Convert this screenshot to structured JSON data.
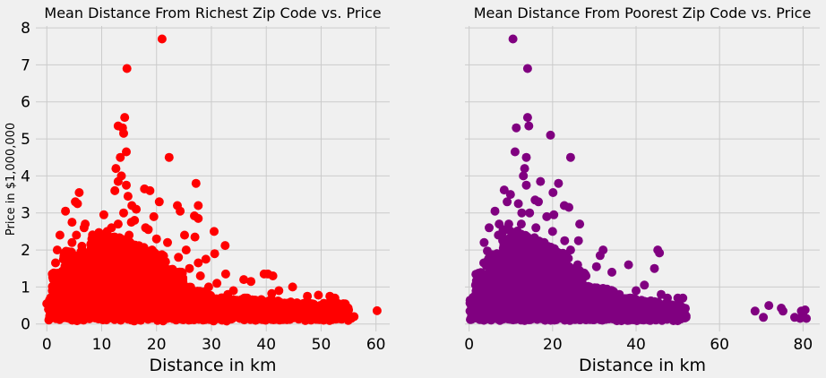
{
  "figure": {
    "background": "#f0f0f0",
    "grid_color": "#cbcbcb",
    "shared_ylabel": "Price in $1,000,000"
  },
  "chart_data": [
    {
      "type": "scatter",
      "title": "Mean Distance From Richest Zip Code vs. Price",
      "xlabel": "Distance in km",
      "ylabel": "Price in $1,000,000",
      "color": "#ff0000",
      "xlim": [
        -2,
        62.5
      ],
      "ylim": [
        -0.2,
        8.05
      ],
      "xticks": [
        0,
        10,
        20,
        30,
        40,
        50,
        60
      ],
      "yticks": [
        0,
        1,
        2,
        3,
        4,
        5,
        6,
        7,
        8
      ],
      "grid": true,
      "points": [
        [
          21.0,
          7.7
        ],
        [
          14.6,
          6.9
        ],
        [
          14.2,
          5.58
        ],
        [
          13.0,
          5.35
        ],
        [
          13.8,
          5.3
        ],
        [
          14.0,
          5.15
        ],
        [
          14.5,
          4.65
        ],
        [
          22.3,
          4.5
        ],
        [
          13.4,
          4.5
        ],
        [
          12.6,
          4.2
        ],
        [
          13.6,
          4.0
        ],
        [
          27.2,
          3.8
        ],
        [
          13.0,
          3.85
        ],
        [
          14.5,
          3.75
        ],
        [
          17.8,
          3.65
        ],
        [
          5.9,
          3.55
        ],
        [
          18.8,
          3.6
        ],
        [
          12.4,
          3.6
        ],
        [
          14.8,
          3.45
        ],
        [
          5.2,
          3.3
        ],
        [
          5.6,
          3.25
        ],
        [
          23.8,
          3.2
        ],
        [
          27.6,
          3.2
        ],
        [
          20.5,
          3.3
        ],
        [
          3.4,
          3.05
        ],
        [
          16.3,
          3.1
        ],
        [
          10.4,
          2.95
        ],
        [
          26.9,
          2.92
        ],
        [
          27.6,
          2.85
        ],
        [
          24.3,
          3.05
        ],
        [
          19.5,
          2.9
        ],
        [
          4.6,
          2.75
        ],
        [
          7.0,
          2.7
        ],
        [
          15.4,
          2.75
        ],
        [
          2.4,
          2.4
        ],
        [
          6.8,
          2.6
        ],
        [
          30.5,
          2.5
        ],
        [
          18.5,
          2.55
        ],
        [
          11.8,
          2.6
        ],
        [
          25.1,
          2.4
        ],
        [
          27.0,
          2.35
        ],
        [
          5.4,
          2.4
        ],
        [
          8.2,
          2.3
        ],
        [
          32.5,
          2.12
        ],
        [
          4.6,
          2.2
        ],
        [
          19.2,
          2.0
        ],
        [
          1.9,
          2.0
        ],
        [
          6.4,
          2.1
        ],
        [
          30.6,
          1.9
        ],
        [
          25.4,
          2.0
        ],
        [
          29.0,
          1.75
        ],
        [
          27.6,
          1.65
        ],
        [
          1.6,
          1.65
        ],
        [
          32.6,
          1.35
        ],
        [
          39.6,
          1.35
        ],
        [
          41.2,
          1.3
        ],
        [
          35.9,
          1.2
        ],
        [
          40.3,
          1.35
        ],
        [
          37.2,
          1.15
        ],
        [
          44.8,
          1.0
        ],
        [
          42.3,
          0.9
        ],
        [
          41.0,
          0.82
        ],
        [
          47.5,
          0.75
        ],
        [
          49.5,
          0.78
        ],
        [
          51.6,
          0.75
        ],
        [
          52.5,
          0.7
        ],
        [
          53.0,
          0.5
        ],
        [
          55.0,
          0.38
        ],
        [
          51.2,
          0.4
        ],
        [
          52.6,
          0.15
        ],
        [
          55.5,
          0.15
        ],
        [
          60.2,
          0.36
        ],
        [
          49.0,
          0.25
        ],
        [
          47.0,
          0.3
        ],
        [
          46.0,
          0.45
        ],
        [
          44.5,
          0.4
        ],
        [
          43.5,
          0.55
        ],
        [
          38.0,
          0.6
        ],
        [
          36.0,
          0.7
        ],
        [
          34.0,
          0.9
        ],
        [
          33.0,
          0.8
        ],
        [
          31.0,
          1.1
        ],
        [
          29.5,
          1.0
        ],
        [
          28.0,
          1.3
        ],
        [
          26.0,
          1.5
        ],
        [
          24.0,
          1.8
        ],
        [
          22.0,
          2.2
        ],
        [
          21.0,
          1.6
        ],
        [
          20.0,
          2.3
        ],
        [
          19.0,
          1.4
        ],
        [
          18.0,
          2.6
        ],
        [
          17.0,
          2.0
        ],
        [
          16.0,
          2.8
        ],
        [
          15.5,
          3.2
        ],
        [
          15.0,
          2.4
        ],
        [
          14.0,
          3.0
        ],
        [
          13.0,
          2.7
        ],
        [
          12.0,
          2.2
        ],
        [
          11.0,
          2.5
        ],
        [
          10.0,
          2.0
        ],
        [
          9.0,
          2.2
        ],
        [
          8.0,
          1.9
        ],
        [
          7.5,
          1.6
        ],
        [
          6.0,
          1.8
        ],
        [
          5.0,
          1.5
        ],
        [
          4.0,
          1.7
        ],
        [
          3.0,
          1.2
        ],
        [
          2.0,
          1.0
        ],
        [
          1.0,
          0.9
        ],
        [
          0.5,
          0.65
        ],
        [
          0.0,
          0.55
        ],
        [
          0.3,
          0.4
        ],
        [
          56.0,
          0.2
        ],
        [
          54.0,
          0.25
        ]
      ],
      "dense_regions": [
        {
          "x": [
            0.3,
            55.0
          ],
          "ytop": [
            0.55,
            0.78
          ],
          "ybot": [
            0.08,
            0.2
          ],
          "n": 1100
        },
        {
          "x": [
            1.0,
            30.0
          ],
          "ytop": [
            0.9,
            1.45
          ],
          "ybot": [
            0.1,
            0.25
          ],
          "n": 1500
        },
        {
          "x": [
            3.0,
            25.0
          ],
          "ytop": [
            1.4,
            2.0
          ],
          "ybot": [
            0.2,
            0.5
          ],
          "n": 900
        },
        {
          "x": [
            8.0,
            22.0
          ],
          "ytop": [
            1.8,
            2.5
          ],
          "ybot": [
            0.3,
            0.8
          ],
          "n": 600
        }
      ],
      "dense_tail": {
        "x": [
          30.0,
          55.0
        ],
        "ytop": [
          0.4,
          0.75
        ],
        "ybot": [
          0.1,
          0.25
        ],
        "n": 550
      }
    },
    {
      "type": "scatter",
      "title": "Mean Distance From Poorest Zip Code vs. Price",
      "xlabel": "Distance in km",
      "ylabel": "",
      "color": "#800080",
      "xlim": [
        -1,
        84
      ],
      "ylim": [
        -0.2,
        8.05
      ],
      "xticks": [
        0,
        20,
        40,
        60,
        80
      ],
      "yticks": [
        0,
        1,
        2,
        3,
        4,
        5,
        6,
        7,
        8
      ],
      "grid": true,
      "points": [
        [
          10.5,
          7.7
        ],
        [
          14.0,
          6.9
        ],
        [
          14.0,
          5.58
        ],
        [
          14.3,
          5.35
        ],
        [
          11.3,
          5.3
        ],
        [
          19.5,
          5.1
        ],
        [
          11.0,
          4.65
        ],
        [
          24.3,
          4.5
        ],
        [
          13.7,
          4.5
        ],
        [
          13.3,
          4.2
        ],
        [
          13.0,
          4.0
        ],
        [
          21.4,
          3.8
        ],
        [
          17.1,
          3.85
        ],
        [
          13.7,
          3.75
        ],
        [
          8.4,
          3.62
        ],
        [
          9.9,
          3.5
        ],
        [
          20.1,
          3.55
        ],
        [
          15.8,
          3.35
        ],
        [
          9.1,
          3.3
        ],
        [
          11.8,
          3.25
        ],
        [
          16.6,
          3.3
        ],
        [
          22.8,
          3.2
        ],
        [
          23.9,
          3.15
        ],
        [
          6.2,
          3.05
        ],
        [
          12.6,
          3.0
        ],
        [
          20.3,
          2.95
        ],
        [
          7.2,
          2.7
        ],
        [
          26.5,
          2.7
        ],
        [
          18.6,
          2.9
        ],
        [
          4.8,
          2.6
        ],
        [
          9.5,
          2.7
        ],
        [
          22.9,
          2.25
        ],
        [
          26.2,
          2.25
        ],
        [
          3.6,
          2.2
        ],
        [
          24.3,
          2.0
        ],
        [
          7.0,
          2.4
        ],
        [
          32.1,
          2.0
        ],
        [
          31.4,
          1.85
        ],
        [
          45.2,
          2.0
        ],
        [
          45.6,
          1.92
        ],
        [
          44.4,
          1.5
        ],
        [
          38.2,
          1.6
        ],
        [
          3.5,
          1.65
        ],
        [
          4.8,
          1.7
        ],
        [
          34.2,
          1.4
        ],
        [
          30.5,
          1.55
        ],
        [
          42.0,
          1.05
        ],
        [
          46.0,
          0.8
        ],
        [
          47.5,
          0.7
        ],
        [
          50.0,
          0.7
        ],
        [
          51.2,
          0.7
        ],
        [
          48.0,
          0.5
        ],
        [
          50.0,
          0.3
        ],
        [
          51.0,
          0.3
        ],
        [
          68.5,
          0.35
        ],
        [
          70.5,
          0.18
        ],
        [
          71.8,
          0.5
        ],
        [
          74.8,
          0.43
        ],
        [
          75.2,
          0.35
        ],
        [
          78.0,
          0.18
        ],
        [
          79.3,
          0.15
        ],
        [
          79.6,
          0.35
        ],
        [
          80.5,
          0.38
        ],
        [
          80.8,
          0.15
        ],
        [
          80.0,
          0.22
        ],
        [
          28.0,
          1.3
        ],
        [
          26.0,
          1.6
        ],
        [
          22.0,
          1.9
        ],
        [
          20.0,
          2.5
        ],
        [
          18.0,
          2.2
        ],
        [
          16.0,
          2.6
        ],
        [
          14.5,
          3.0
        ],
        [
          12.5,
          2.7
        ],
        [
          11.0,
          2.3
        ],
        [
          9.0,
          2.0
        ],
        [
          8.0,
          1.8
        ],
        [
          6.0,
          1.4
        ],
        [
          5.0,
          1.2
        ],
        [
          2.5,
          0.9
        ],
        [
          1.5,
          0.7
        ],
        [
          0.5,
          0.5
        ],
        [
          0.2,
          0.35
        ],
        [
          40.0,
          0.9
        ],
        [
          36.0,
          0.8
        ]
      ],
      "dense_regions": [
        {
          "x": [
            0.2,
            51.0
          ],
          "ytop": [
            0.5,
            0.75
          ],
          "ybot": [
            0.08,
            0.18
          ],
          "n": 1200
        },
        {
          "x": [
            1.5,
            35.0
          ],
          "ytop": [
            0.9,
            1.4
          ],
          "ybot": [
            0.1,
            0.25
          ],
          "n": 1500
        },
        {
          "x": [
            4.0,
            28.0
          ],
          "ytop": [
            1.4,
            2.0
          ],
          "ybot": [
            0.2,
            0.5
          ],
          "n": 900
        },
        {
          "x": [
            8.0,
            24.0
          ],
          "ytop": [
            1.8,
            2.6
          ],
          "ybot": [
            0.3,
            0.8
          ],
          "n": 650
        }
      ],
      "dense_tail": {
        "x": [
          30.0,
          52.0
        ],
        "ytop": [
          0.45,
          0.8
        ],
        "ybot": [
          0.1,
          0.25
        ],
        "n": 500
      }
    }
  ]
}
